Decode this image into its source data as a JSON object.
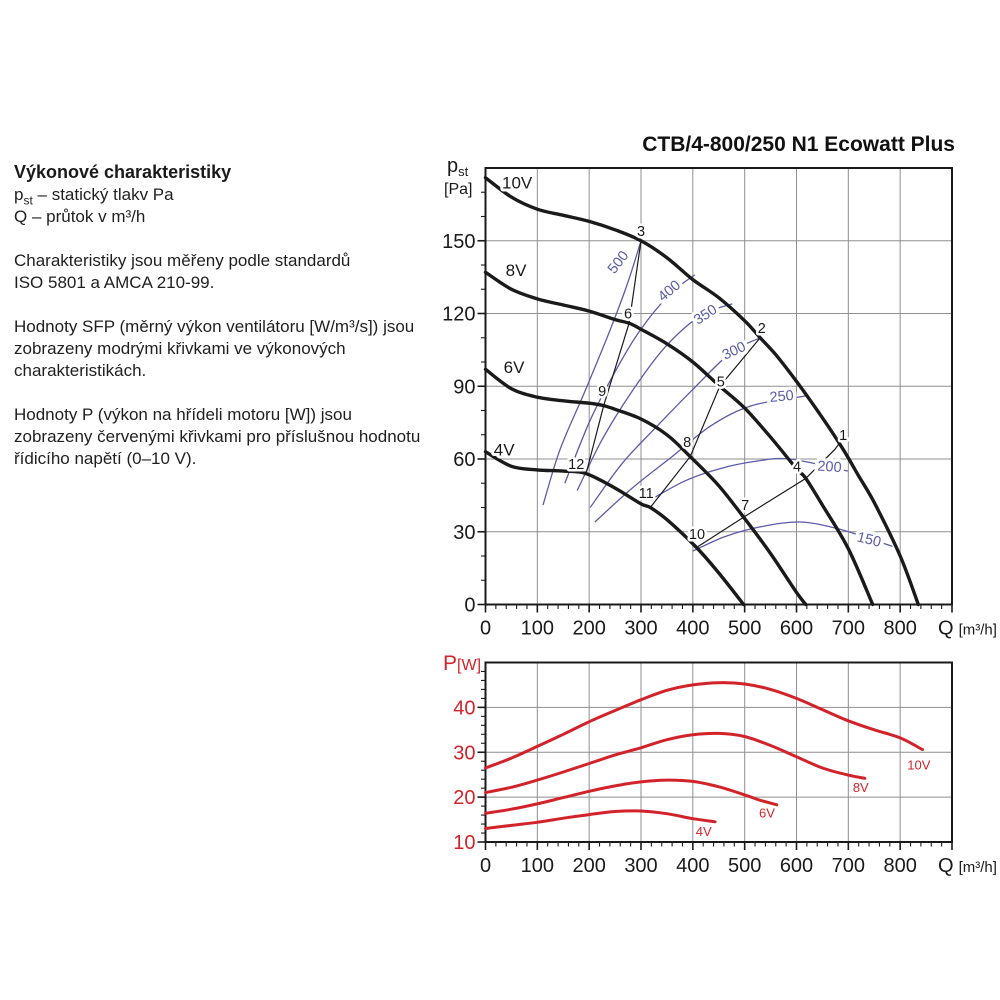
{
  "title": "CTB/4-800/250 N1 Ecowatt Plus",
  "left_panel": {
    "heading": "Výkonové charakteristiky",
    "pst_symbol": "p",
    "pst_sub": "st",
    "pst_rest": " – statický tlakv Pa",
    "q_line": "Q – průtok v m³/h",
    "para1_line1": "Charakteristiky jsou měřeny podle standardů",
    "para1_line2": "ISO 5801 a AMCA 210-99.",
    "para2": "Hodnoty SFP (měrný výkon ventilátoru [W/m³/s]) jsou zobrazeny modrými křivkami ve výkonových charakteristikách.",
    "para3": "Hodnoty P (výkon na hřídeli motoru [W]) jsou zobrazeny červenými křivkami pro příslušnou hodnotu řídicího napětí (0–10 V)."
  },
  "colors": {
    "black": "#1a1a1a",
    "blue": "#5b5ba8",
    "red": "#d2232a",
    "grid": "#8f8f8f"
  },
  "chart_data": [
    {
      "type": "line",
      "name": "pressure-vs-flow",
      "x_axis": {
        "label_main": "Q",
        "label_unit": "[m³/h]",
        "ticks": [
          0,
          100,
          200,
          300,
          400,
          500,
          600,
          700,
          800
        ],
        "minor_step": 20,
        "range": [
          0,
          900
        ]
      },
      "y_axis": {
        "symbol": "p",
        "symbol_sub": "st",
        "unit": "[Pa]",
        "ticks": [
          0,
          30,
          60,
          90,
          120,
          150
        ],
        "minor_step": 10,
        "range": [
          0,
          180
        ]
      },
      "pressure_curves": [
        {
          "name": "10V",
          "label_at": [
            61,
            174
          ],
          "points": [
            [
              0,
              176
            ],
            [
              50,
              168
            ],
            [
              100,
              163
            ],
            [
              150,
              160.5
            ],
            [
              200,
              158
            ],
            [
              250,
              154.5
            ],
            [
              300,
              150
            ],
            [
              350,
              143
            ],
            [
              400,
              134
            ],
            [
              450,
              126.5
            ],
            [
              500,
              117
            ],
            [
              530,
              110
            ],
            [
              560,
              103
            ],
            [
              600,
              92
            ],
            [
              650,
              77
            ],
            [
              690,
              64
            ],
            [
              720,
              53
            ],
            [
              750,
              42
            ],
            [
              800,
              20
            ],
            [
              835,
              0
            ]
          ]
        },
        {
          "name": "8V",
          "label_at": [
            59,
            138
          ],
          "points": [
            [
              0,
              137
            ],
            [
              50,
              130
            ],
            [
              100,
              126
            ],
            [
              150,
              123.5
            ],
            [
              200,
              121
            ],
            [
              250,
              117.5
            ],
            [
              277,
              116
            ],
            [
              300,
              113.5
            ],
            [
              350,
              107.5
            ],
            [
              400,
              100
            ],
            [
              452,
              90
            ],
            [
              500,
              81
            ],
            [
              550,
              69
            ],
            [
              600,
              56
            ],
            [
              618,
              52
            ],
            [
              650,
              41
            ],
            [
              700,
              23
            ],
            [
              747,
              0
            ]
          ]
        },
        {
          "name": "6V",
          "label_at": [
            55,
            98
          ],
          "points": [
            [
              0,
              97
            ],
            [
              50,
              89
            ],
            [
              100,
              85.5
            ],
            [
              150,
              84
            ],
            [
              200,
              83
            ],
            [
              228,
              82
            ],
            [
              250,
              80.5
            ],
            [
              300,
              76.5
            ],
            [
              350,
              70
            ],
            [
              395,
              61
            ],
            [
              450,
              49
            ],
            [
              498,
              36
            ],
            [
              550,
              21
            ],
            [
              600,
              5
            ],
            [
              618,
              0
            ]
          ]
        },
        {
          "name": "4V",
          "label_at": [
            36,
            64
          ],
          "points": [
            [
              0,
              63
            ],
            [
              50,
              57
            ],
            [
              100,
              55.5
            ],
            [
              150,
              55
            ],
            [
              194,
              54
            ],
            [
              250,
              48
            ],
            [
              300,
              41.5
            ],
            [
              318,
              40
            ],
            [
              350,
              35
            ],
            [
              407,
              23.5
            ],
            [
              450,
              13
            ],
            [
              498,
              0
            ]
          ]
        }
      ],
      "sfp_curves": [
        {
          "value": "500",
          "label_at": [
            263,
            142
          ],
          "label_rot": -52,
          "points": [
            [
              111,
              41
            ],
            [
              144,
              64
            ],
            [
              192,
              88
            ],
            [
              240,
              113
            ],
            [
              275,
              133
            ],
            [
              300,
              150
            ]
          ]
        },
        {
          "value": "400",
          "label_at": [
            360,
            130
          ],
          "label_rot": -40,
          "points": [
            [
              153,
              50
            ],
            [
              202,
              76
            ],
            [
              250,
              96
            ],
            [
              298,
              113
            ],
            [
              356,
              128
            ],
            [
              404,
              136
            ]
          ]
        },
        {
          "value": "350",
          "label_at": [
            429,
            120
          ],
          "label_rot": -33,
          "points": [
            [
              177,
              47
            ],
            [
              225,
              68
            ],
            [
              283,
              88
            ],
            [
              346,
              106
            ],
            [
              414,
              119
            ],
            [
              476,
              124
            ]
          ]
        },
        {
          "value": "300",
          "label_at": [
            483,
            105
          ],
          "label_rot": -25,
          "points": [
            [
              202,
              40
            ],
            [
              263,
              58
            ],
            [
              333,
              74
            ],
            [
              406,
              90
            ],
            [
              474,
              104
            ],
            [
              530,
              110
            ]
          ]
        },
        {
          "value": "250",
          "label_at": [
            572,
            86
          ],
          "label_rot": -5,
          "points": [
            [
              211,
              34
            ],
            [
              283,
              48
            ],
            [
              360,
              61
            ],
            [
              437,
              74
            ],
            [
              514,
              82
            ],
            [
              618,
              86
            ]
          ]
        },
        {
          "value": "200",
          "label_at": [
            663,
            57
          ],
          "label_rot": 4,
          "points": [
            [
              317,
              43
            ],
            [
              385,
              51
            ],
            [
              452,
              56
            ],
            [
              520,
              59
            ],
            [
              587,
              60
            ],
            [
              699,
              55
            ]
          ]
        },
        {
          "value": "150",
          "label_at": [
            738,
            27
          ],
          "label_rot": 14,
          "points": [
            [
              400,
              22
            ],
            [
              462,
              28
            ],
            [
              530,
              32
            ],
            [
              607,
              34
            ],
            [
              684,
              31
            ],
            [
              785,
              24
            ]
          ]
        }
      ],
      "selection_lines": [
        {
          "points": [
            [
              300,
              150
            ],
            [
              277,
              116
            ],
            [
              228,
              82
            ],
            [
              194,
              54
            ]
          ]
        },
        {
          "points": [
            [
              530,
              110
            ],
            [
              452,
              90
            ],
            [
              395,
              61
            ],
            [
              318,
              40
            ]
          ]
        },
        {
          "points": [
            [
              688,
              68
            ],
            [
              674,
              64
            ],
            [
              618,
              52
            ],
            [
              498,
              36
            ],
            [
              407,
              23.5
            ]
          ]
        }
      ],
      "operating_points": [
        {
          "n": "1",
          "at": [
            690,
            70
          ]
        },
        {
          "n": "2",
          "at": [
            533,
            114
          ]
        },
        {
          "n": "3",
          "at": [
            300,
            154
          ]
        },
        {
          "n": "4",
          "at": [
            601,
            57
          ]
        },
        {
          "n": "5",
          "at": [
            454,
            92
          ]
        },
        {
          "n": "6",
          "at": [
            275,
            120
          ]
        },
        {
          "n": "7",
          "at": [
            501,
            41
          ]
        },
        {
          "n": "8",
          "at": [
            389,
            67
          ]
        },
        {
          "n": "9",
          "at": [
            225,
            88
          ]
        },
        {
          "n": "10",
          "at": [
            408,
            29
          ]
        },
        {
          "n": "11",
          "at": [
            310,
            46
          ]
        },
        {
          "n": "12",
          "at": [
            175,
            58
          ]
        }
      ]
    },
    {
      "type": "line",
      "name": "power-vs-flow",
      "x_axis": {
        "label_main": "Q",
        "label_unit": "[m³/h]",
        "ticks": [
          0,
          100,
          200,
          300,
          400,
          500,
          600,
          700,
          800
        ],
        "minor_step": 20,
        "range": [
          0,
          900
        ]
      },
      "y_axis": {
        "symbol": "P",
        "unit": "[W]",
        "ticks": [
          10,
          20,
          30,
          40
        ],
        "minor_step": 2,
        "range": [
          10,
          50
        ]
      },
      "power_curves": [
        {
          "name": "10V",
          "label_at": [
            836,
            27
          ],
          "points": [
            [
              0,
              26.5
            ],
            [
              50,
              28.7
            ],
            [
              100,
              31.3
            ],
            [
              150,
              34
            ],
            [
              200,
              36.8
            ],
            [
              250,
              39.3
            ],
            [
              300,
              41.7
            ],
            [
              350,
              43.8
            ],
            [
              400,
              45
            ],
            [
              450,
              45.5
            ],
            [
              500,
              45.2
            ],
            [
              550,
              44
            ],
            [
              600,
              42
            ],
            [
              650,
              39.5
            ],
            [
              700,
              37
            ],
            [
              750,
              35
            ],
            [
              800,
              33.2
            ],
            [
              843,
              30.6
            ]
          ]
        },
        {
          "name": "8V",
          "label_at": [
            724,
            22
          ],
          "points": [
            [
              0,
              21
            ],
            [
              50,
              22.2
            ],
            [
              100,
              23.8
            ],
            [
              150,
              25.6
            ],
            [
              200,
              27.5
            ],
            [
              250,
              29.4
            ],
            [
              300,
              31
            ],
            [
              350,
              32.8
            ],
            [
              400,
              33.9
            ],
            [
              450,
              34.2
            ],
            [
              500,
              33.5
            ],
            [
              550,
              31.5
            ],
            [
              600,
              29
            ],
            [
              650,
              26.5
            ],
            [
              700,
              24.9
            ],
            [
              732,
              24.2
            ]
          ]
        },
        {
          "name": "6V",
          "label_at": [
            543,
            16.3
          ],
          "points": [
            [
              0,
              16.4
            ],
            [
              50,
              17.3
            ],
            [
              100,
              18.5
            ],
            [
              150,
              19.9
            ],
            [
              200,
              21.3
            ],
            [
              250,
              22.5
            ],
            [
              300,
              23.4
            ],
            [
              350,
              23.8
            ],
            [
              400,
              23.5
            ],
            [
              450,
              22.3
            ],
            [
              500,
              20.5
            ],
            [
              530,
              19.3
            ],
            [
              562,
              18.3
            ]
          ]
        },
        {
          "name": "4V",
          "label_at": [
            421,
            12.2
          ],
          "points": [
            [
              0,
              13
            ],
            [
              50,
              13.7
            ],
            [
              100,
              14.4
            ],
            [
              150,
              15.3
            ],
            [
              200,
              16.1
            ],
            [
              250,
              16.8
            ],
            [
              300,
              16.9
            ],
            [
              350,
              16.3
            ],
            [
              400,
              15.2
            ],
            [
              443,
              14.5
            ]
          ]
        }
      ]
    }
  ]
}
